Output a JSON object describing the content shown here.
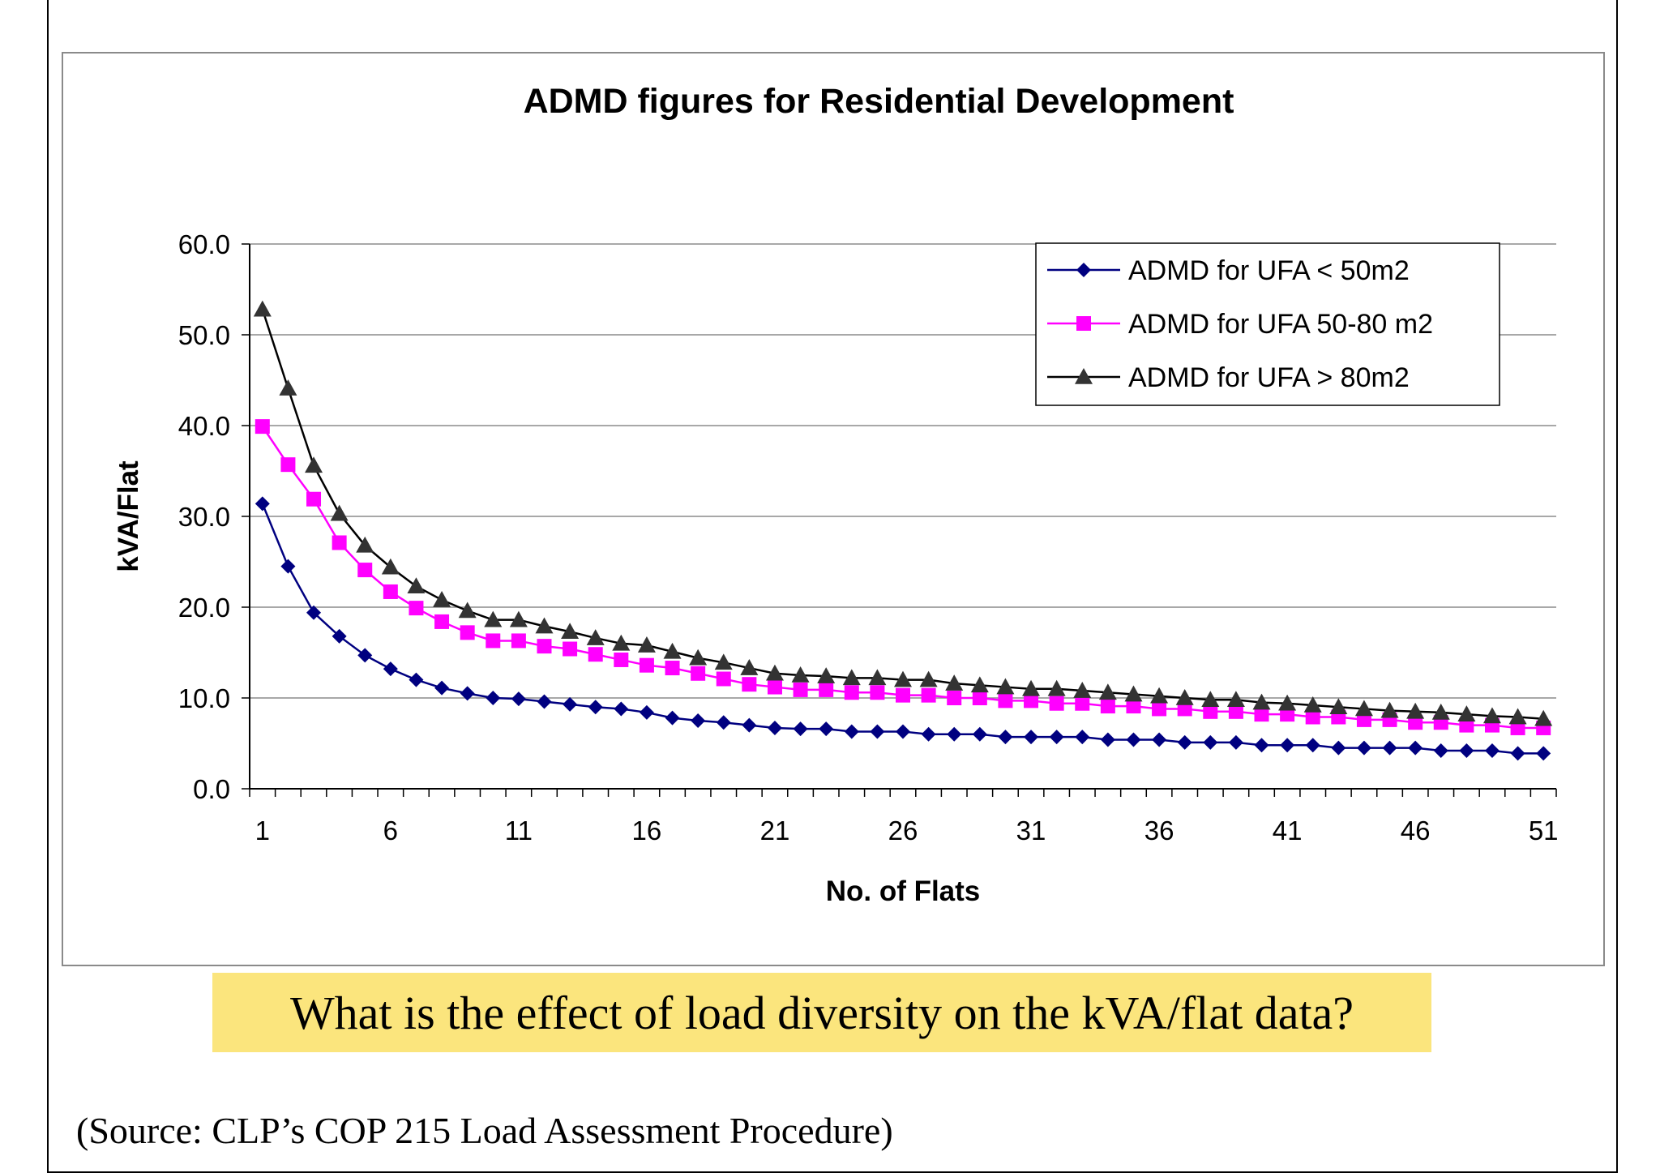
{
  "chart_data": {
    "type": "line",
    "title": "ADMD figures for Residential Development",
    "xlabel": "No. of Flats",
    "ylabel": "kVA/Flat",
    "x": [
      1,
      2,
      3,
      4,
      5,
      6,
      7,
      8,
      9,
      10,
      11,
      12,
      13,
      14,
      15,
      16,
      17,
      18,
      19,
      20,
      21,
      22,
      23,
      24,
      25,
      26,
      27,
      28,
      29,
      30,
      31,
      32,
      33,
      34,
      35,
      36,
      37,
      38,
      39,
      40,
      41,
      42,
      43,
      44,
      45,
      46,
      47,
      48,
      49,
      50,
      51
    ],
    "xticks": [
      "1",
      "6",
      "11",
      "16",
      "21",
      "26",
      "31",
      "36",
      "41",
      "46",
      "51"
    ],
    "yticks": [
      "0.0",
      "10.0",
      "20.0",
      "30.0",
      "40.0",
      "50.0",
      "60.0"
    ],
    "ylim": [
      0,
      60
    ],
    "grid": true,
    "legend_position": "top-right",
    "series": [
      {
        "name": "ADMD for UFA < 50m2",
        "color": "#000080",
        "marker": "diamond",
        "values": [
          31.4,
          24.5,
          19.4,
          16.8,
          14.7,
          13.2,
          12.0,
          11.1,
          10.5,
          10.0,
          9.9,
          9.6,
          9.3,
          9.0,
          8.8,
          8.4,
          7.8,
          7.5,
          7.3,
          7.0,
          6.7,
          6.6,
          6.6,
          6.3,
          6.3,
          6.3,
          6.0,
          6.0,
          6.0,
          5.7,
          5.7,
          5.7,
          5.7,
          5.4,
          5.4,
          5.4,
          5.1,
          5.1,
          5.1,
          4.8,
          4.8,
          4.8,
          4.5,
          4.5,
          4.5,
          4.5,
          4.2,
          4.2,
          4.2,
          3.9,
          3.9
        ]
      },
      {
        "name": "ADMD for UFA 50-80 m2",
        "color": "#ff00ff",
        "marker": "square",
        "values": [
          39.9,
          35.7,
          31.9,
          27.1,
          24.1,
          21.7,
          19.9,
          18.4,
          17.2,
          16.3,
          16.3,
          15.7,
          15.4,
          14.8,
          14.2,
          13.6,
          13.3,
          12.7,
          12.1,
          11.5,
          11.2,
          10.9,
          10.9,
          10.6,
          10.6,
          10.3,
          10.3,
          10.0,
          10.0,
          9.7,
          9.7,
          9.4,
          9.4,
          9.1,
          9.1,
          8.8,
          8.8,
          8.5,
          8.5,
          8.2,
          8.2,
          7.9,
          7.9,
          7.6,
          7.6,
          7.3,
          7.3,
          7.0,
          7.0,
          6.7,
          6.7
        ]
      },
      {
        "name": "ADMD for UFA > 80m2",
        "color": "#000000",
        "marker": "triangle",
        "values": [
          52.8,
          44.1,
          35.6,
          30.3,
          26.8,
          24.4,
          22.3,
          20.8,
          19.6,
          18.6,
          18.6,
          17.9,
          17.3,
          16.6,
          16.0,
          15.8,
          15.1,
          14.4,
          13.9,
          13.3,
          12.7,
          12.5,
          12.4,
          12.2,
          12.2,
          12.0,
          12.0,
          11.6,
          11.4,
          11.2,
          11.0,
          11.0,
          10.8,
          10.6,
          10.4,
          10.2,
          10.0,
          9.8,
          9.8,
          9.5,
          9.4,
          9.2,
          9.0,
          8.8,
          8.6,
          8.5,
          8.4,
          8.2,
          8.0,
          7.9,
          7.7
        ]
      }
    ]
  },
  "question": "What is the effect of load diversity on the kVA/flat data?",
  "source": "(Source: CLP’s COP 215 Load Assessment Procedure)"
}
